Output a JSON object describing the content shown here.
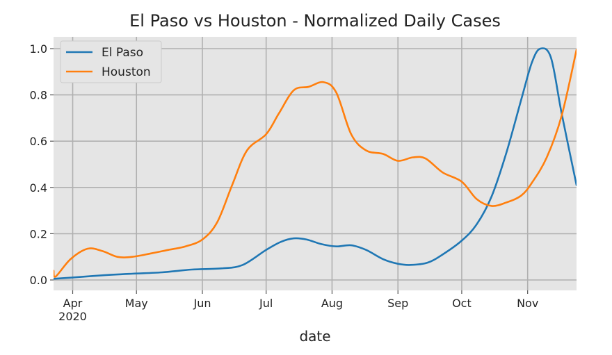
{
  "chart_data": {
    "type": "line",
    "title": "El Paso vs Houston - Normalized Daily Cases",
    "xlabel": "date",
    "ylabel": "",
    "ylim": [
      0.0,
      1.0
    ],
    "grid": true,
    "legend_position": "top-left",
    "x_tick_labels": [
      {
        "date": "2020-04-01",
        "label": "Apr",
        "sublabel": "2020"
      },
      {
        "date": "2020-05-01",
        "label": "May",
        "sublabel": ""
      },
      {
        "date": "2020-06-01",
        "label": "Jun",
        "sublabel": ""
      },
      {
        "date": "2020-07-01",
        "label": "Jul",
        "sublabel": ""
      },
      {
        "date": "2020-08-01",
        "label": "Aug",
        "sublabel": ""
      },
      {
        "date": "2020-09-01",
        "label": "Sep",
        "sublabel": ""
      },
      {
        "date": "2020-10-01",
        "label": "Oct",
        "sublabel": ""
      },
      {
        "date": "2020-11-01",
        "label": "Nov",
        "sublabel": ""
      }
    ],
    "y_tick_labels": [
      "0.0",
      "0.2",
      "0.4",
      "0.6",
      "0.8",
      "1.0"
    ],
    "x_range": [
      "2020-03-23",
      "2020-11-24"
    ],
    "series": [
      {
        "name": "El Paso",
        "color": "#1f77b4",
        "x": [
          "2020-03-23",
          "2020-03-31",
          "2020-04-15",
          "2020-04-29",
          "2020-05-13",
          "2020-05-27",
          "2020-06-10",
          "2020-06-20",
          "2020-07-01",
          "2020-07-08",
          "2020-07-14",
          "2020-07-20",
          "2020-07-27",
          "2020-08-03",
          "2020-08-10",
          "2020-08-17",
          "2020-08-25",
          "2020-09-01",
          "2020-09-07",
          "2020-09-15",
          "2020-09-22",
          "2020-10-01",
          "2020-10-08",
          "2020-10-15",
          "2020-10-22",
          "2020-10-29",
          "2020-11-03",
          "2020-11-07",
          "2020-11-12",
          "2020-11-17",
          "2020-11-24"
        ],
        "values": [
          0.005,
          0.01,
          0.02,
          0.027,
          0.033,
          0.045,
          0.05,
          0.065,
          0.13,
          0.165,
          0.18,
          0.175,
          0.155,
          0.145,
          0.15,
          0.13,
          0.09,
          0.07,
          0.065,
          0.075,
          0.11,
          0.17,
          0.24,
          0.36,
          0.55,
          0.78,
          0.94,
          1.0,
          0.96,
          0.72,
          0.41
        ]
      },
      {
        "name": "Houston",
        "color": "#ff7f0e",
        "x": [
          "2020-03-23",
          "2020-03-24",
          "2020-03-31",
          "2020-04-08",
          "2020-04-15",
          "2020-04-22",
          "2020-04-29",
          "2020-05-08",
          "2020-05-16",
          "2020-05-24",
          "2020-06-01",
          "2020-06-08",
          "2020-06-15",
          "2020-06-22",
          "2020-07-01",
          "2020-07-07",
          "2020-07-14",
          "2020-07-21",
          "2020-07-28",
          "2020-08-03",
          "2020-08-10",
          "2020-08-17",
          "2020-08-25",
          "2020-09-01",
          "2020-09-08",
          "2020-09-14",
          "2020-09-22",
          "2020-10-01",
          "2020-10-08",
          "2020-10-15",
          "2020-10-22",
          "2020-10-29",
          "2020-11-03",
          "2020-11-10",
          "2020-11-17",
          "2020-11-24"
        ],
        "values": [
          0.04,
          0.015,
          0.09,
          0.135,
          0.125,
          0.1,
          0.1,
          0.115,
          0.13,
          0.145,
          0.175,
          0.25,
          0.41,
          0.56,
          0.63,
          0.72,
          0.82,
          0.835,
          0.855,
          0.81,
          0.63,
          0.56,
          0.545,
          0.515,
          0.53,
          0.525,
          0.465,
          0.425,
          0.35,
          0.32,
          0.335,
          0.365,
          0.42,
          0.53,
          0.71,
          0.995
        ]
      }
    ]
  }
}
